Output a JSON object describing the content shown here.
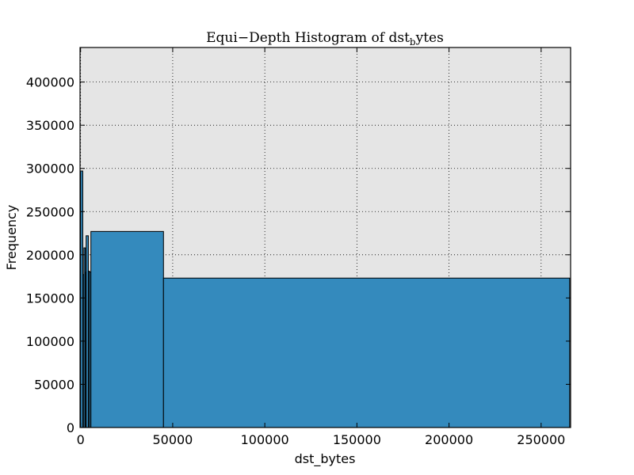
{
  "chart_data": {
    "type": "bar",
    "title": "Equi−Depth Histogram of dst_bytes",
    "title_parts": {
      "main": "Equi−Depth Histogram of dst",
      "subscript": "b",
      "tail": "ytes"
    },
    "xlabel": "dst_bytes",
    "ylabel": "Frequency",
    "xlim": [
      -300,
      266000
    ],
    "ylim": [
      0,
      440000
    ],
    "grid": true,
    "plot_background": "#e5e5e5",
    "bar_color": "#348abd",
    "bin_edges": [
      0,
      1200,
      1800,
      2600,
      3000,
      4200,
      4800,
      5600,
      45000,
      265500
    ],
    "counts": [
      297000,
      177000,
      208000,
      180000,
      222000,
      181000,
      180000,
      227000,
      173000
    ],
    "x_ticks": [
      0,
      50000,
      100000,
      150000,
      200000,
      250000
    ],
    "x_tick_labels": [
      "0",
      "50000",
      "100000",
      "150000",
      "200000",
      "250000"
    ],
    "y_ticks": [
      0,
      50000,
      100000,
      150000,
      200000,
      250000,
      300000,
      350000,
      400000
    ],
    "y_tick_labels": [
      "0",
      "50000",
      "100000",
      "150000",
      "200000",
      "250000",
      "300000",
      "350000",
      "400000"
    ]
  }
}
